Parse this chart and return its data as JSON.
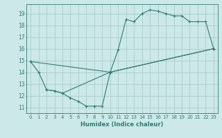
{
  "title": "",
  "xlabel": "Humidex (Indice chaleur)",
  "ylabel": "",
  "bg_color": "#cce8e8",
  "grid_color": "#aacccc",
  "line_color": "#2e7d70",
  "xlim": [
    -0.5,
    23.5
  ],
  "ylim": [
    10.5,
    19.8
  ],
  "xticks": [
    0,
    1,
    2,
    3,
    4,
    5,
    6,
    7,
    8,
    9,
    10,
    11,
    12,
    13,
    14,
    15,
    16,
    17,
    18,
    19,
    20,
    21,
    22,
    23
  ],
  "yticks": [
    11,
    12,
    13,
    14,
    15,
    16,
    17,
    18,
    19
  ],
  "series": [
    {
      "x": [
        0,
        1,
        2,
        3,
        4,
        10,
        11,
        12,
        13,
        14,
        15,
        16,
        17,
        18,
        19,
        20,
        21,
        22,
        23
      ],
      "y": [
        14.9,
        14.0,
        12.5,
        12.4,
        12.2,
        14.0,
        15.9,
        18.5,
        18.3,
        19.0,
        19.3,
        19.2,
        19.0,
        18.8,
        18.8,
        18.3,
        18.3,
        18.3,
        16.0
      ]
    },
    {
      "x": [
        2,
        3,
        4,
        5,
        6,
        7,
        8,
        9,
        10,
        23
      ],
      "y": [
        12.5,
        12.4,
        12.2,
        11.8,
        11.5,
        11.1,
        11.1,
        11.1,
        14.0,
        16.0
      ]
    },
    {
      "x": [
        0,
        10,
        23
      ],
      "y": [
        14.9,
        14.0,
        16.0
      ]
    }
  ]
}
